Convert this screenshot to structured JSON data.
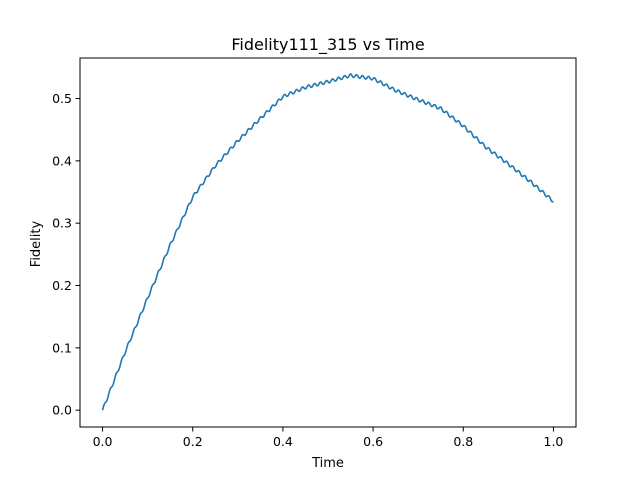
{
  "chart_data": {
    "type": "line",
    "title": "Fidelity111_315 vs Time",
    "xlabel": "Time",
    "ylabel": "Fidelity",
    "xlim": [
      -0.05,
      1.05
    ],
    "ylim": [
      -0.027,
      0.565
    ],
    "xticks": [
      "0.0",
      "0.2",
      "0.4",
      "0.6",
      "0.8",
      "1.0"
    ],
    "yticks": [
      "0.0",
      "0.1",
      "0.2",
      "0.3",
      "0.4",
      "0.5"
    ],
    "grid": false,
    "legend": "none",
    "series": [
      {
        "color": "#1f77b4",
        "x": [
          0.0,
          0.05,
          0.1,
          0.15,
          0.2,
          0.25,
          0.3,
          0.35,
          0.4,
          0.45,
          0.5,
          0.55,
          0.6,
          0.65,
          0.7,
          0.75,
          0.8,
          0.85,
          0.9,
          0.95,
          1.0
        ],
        "y": [
          0.0,
          0.093,
          0.18,
          0.265,
          0.342,
          0.392,
          0.432,
          0.468,
          0.503,
          0.518,
          0.527,
          0.537,
          0.532,
          0.513,
          0.498,
          0.484,
          0.456,
          0.422,
          0.395,
          0.366,
          0.335
        ]
      }
    ]
  }
}
